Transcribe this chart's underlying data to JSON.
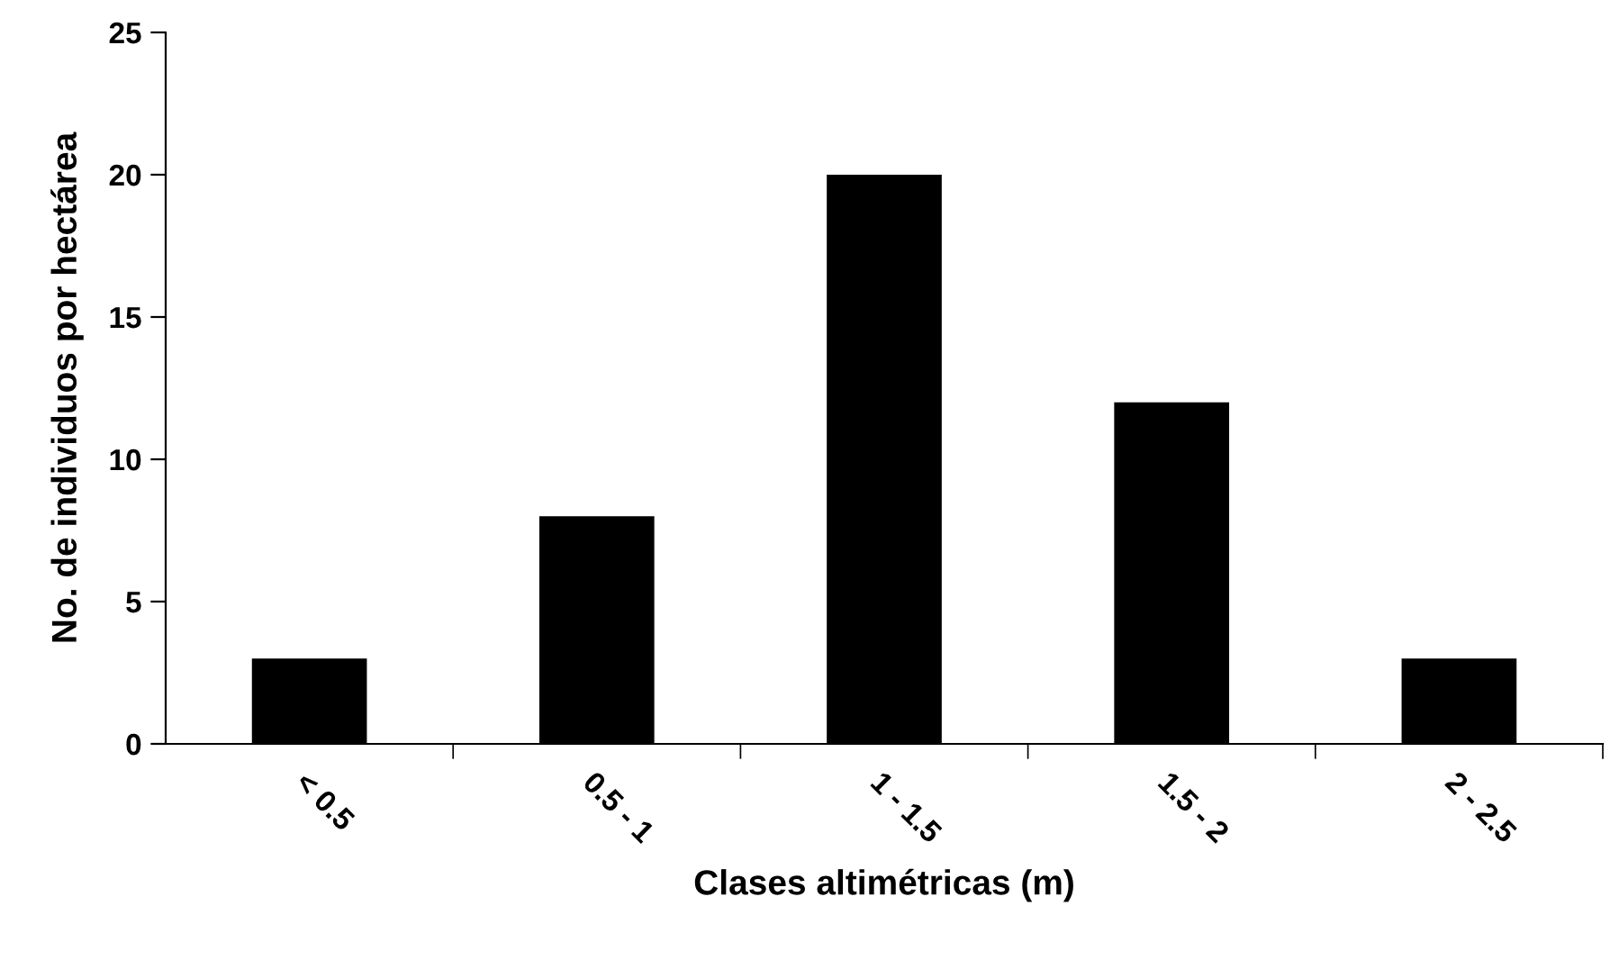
{
  "chart_data": {
    "type": "bar",
    "xlabel": "Clases altimétricas (m)",
    "ylabel": "No. de individuos por hectárea",
    "categories": [
      "< 0.5",
      "0.5 - 1",
      "1 - 1.5",
      "1.5 - 2",
      "2 - 2.5"
    ],
    "values": [
      3,
      8,
      20,
      12,
      3
    ],
    "color": "#000000",
    "ylim": [
      0,
      25
    ],
    "yticks": [
      0,
      5,
      10,
      15,
      20,
      25
    ],
    "grid": false,
    "legend": false
  }
}
